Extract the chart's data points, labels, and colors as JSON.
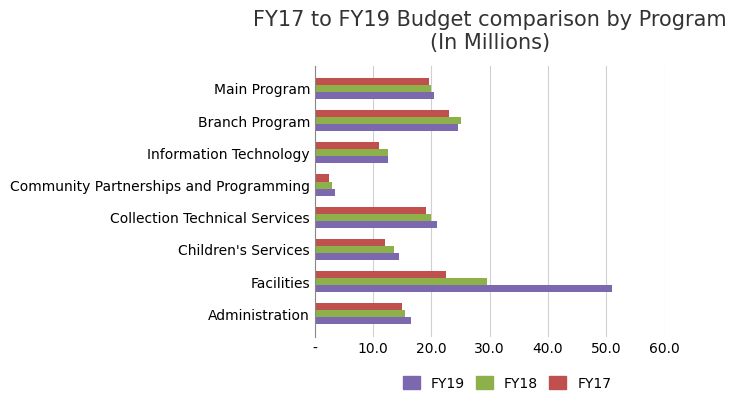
{
  "title": "FY17 to FY19 Budget comparison by Program\n(In Millions)",
  "categories": [
    "Administration",
    "Facilities",
    "Children's Services",
    "Collection Technical Services",
    "Community Partnerships and Programming",
    "Information Technology",
    "Branch Program",
    "Main Program"
  ],
  "series": {
    "FY19": [
      16.5,
      51.0,
      14.5,
      21.0,
      3.5,
      12.5,
      24.5,
      20.5
    ],
    "FY18": [
      15.5,
      29.5,
      13.5,
      20.0,
      3.0,
      12.5,
      25.0,
      20.0
    ],
    "FY17": [
      15.0,
      22.5,
      12.0,
      19.0,
      2.5,
      11.0,
      23.0,
      19.5
    ]
  },
  "colors": {
    "FY19": "#7B68AE",
    "FY18": "#8DB04A",
    "FY17": "#C0504D"
  },
  "xlim": [
    0,
    60
  ],
  "xticklabels": [
    "-",
    "10.0",
    "20.0",
    "30.0",
    "40.0",
    "50.0",
    "60.0"
  ],
  "background_color": "#FFFFFF",
  "grid_color": "#D0D0D0",
  "title_fontsize": 15,
  "legend_fontsize": 10,
  "tick_fontsize": 10,
  "label_fontsize": 10
}
